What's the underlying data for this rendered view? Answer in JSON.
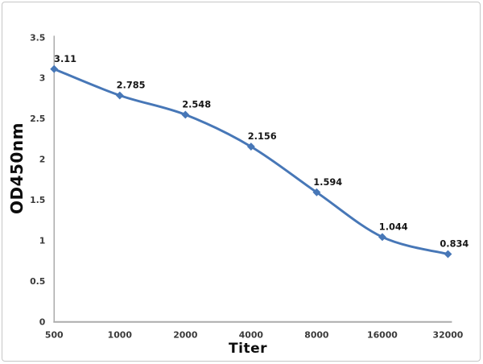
{
  "chart_data": {
    "type": "line",
    "title": "",
    "xlabel": "Titer",
    "ylabel": "OD450nm",
    "categories": [
      "500",
      "1000",
      "2000",
      "4000",
      "8000",
      "16000",
      "32000"
    ],
    "series": [
      {
        "name": "OD450nm",
        "values": [
          3.11,
          2.785,
          2.548,
          2.156,
          1.594,
          1.044,
          0.834
        ]
      }
    ],
    "data_labels": [
      "3.11",
      "2.785",
      "2.548",
      "2.156",
      "1.594",
      "1.044",
      "0.834"
    ],
    "ylim": [
      0,
      3.5
    ],
    "ytick_step": 0.5,
    "yticks": [
      "0",
      "0.5",
      "1",
      "1.5",
      "2",
      "2.5",
      "3",
      "3.5"
    ],
    "grid": "off",
    "legend": "none",
    "smooth": true,
    "marker": "diamond",
    "colors": {
      "line": "#4777B7",
      "marker": "#4777B7",
      "axis": "#ababab",
      "tick_text": "#3a3a3a",
      "label_text": "#161616",
      "border": "#c6c6c6",
      "background": "#ffffff"
    }
  }
}
